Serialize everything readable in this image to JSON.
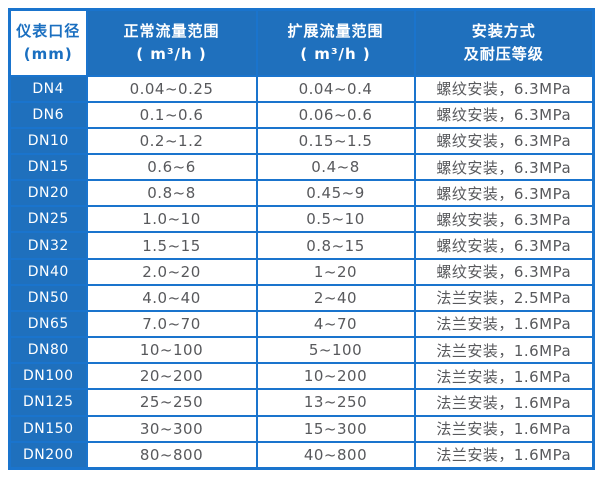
{
  "colors": {
    "page_bg": "#ffffff",
    "blue_fill": "#1f70bd",
    "border_blue": "#1a74cd",
    "header_blue_text": "#1a6fc0",
    "data_text": "#58595c"
  },
  "table": {
    "headers": [
      {
        "line1": "仪表口径",
        "line2": "(mm)"
      },
      {
        "line1": "正常流量范围",
        "line2": "( m³/h )"
      },
      {
        "line1": "扩展流量范围",
        "line2": "( m³/h )"
      },
      {
        "line1": "安装方式",
        "line2": "及耐压等级"
      }
    ],
    "rows": [
      {
        "dn": "DN4",
        "normal": "0.04~0.25",
        "extended": "0.04~0.4",
        "install": "螺纹安装，6.3MPa"
      },
      {
        "dn": "DN6",
        "normal": "0.1~0.6",
        "extended": "0.06~0.6",
        "install": "螺纹安装，6.3MPa"
      },
      {
        "dn": "DN10",
        "normal": "0.2~1.2",
        "extended": "0.15~1.5",
        "install": "螺纹安装，6.3MPa"
      },
      {
        "dn": "DN15",
        "normal": "0.6~6",
        "extended": "0.4~8",
        "install": "螺纹安装，6.3MPa"
      },
      {
        "dn": "DN20",
        "normal": "0.8~8",
        "extended": "0.45~9",
        "install": "螺纹安装，6.3MPa"
      },
      {
        "dn": "DN25",
        "normal": "1.0~10",
        "extended": "0.5~10",
        "install": "螺纹安装，6.3MPa"
      },
      {
        "dn": "DN32",
        "normal": "1.5~15",
        "extended": "0.8~15",
        "install": "螺纹安装，6.3MPa"
      },
      {
        "dn": "DN40",
        "normal": "2.0~20",
        "extended": "1~20",
        "install": "螺纹安装，6.3MPa"
      },
      {
        "dn": "DN50",
        "normal": "4.0~40",
        "extended": "2~40",
        "install": "法兰安装，2.5MPa"
      },
      {
        "dn": "DN65",
        "normal": "7.0~70",
        "extended": "4~70",
        "install": "法兰安装，1.6MPa"
      },
      {
        "dn": "DN80",
        "normal": "10~100",
        "extended": "5~100",
        "install": "法兰安装，1.6MPa"
      },
      {
        "dn": "DN100",
        "normal": "20~200",
        "extended": "10~200",
        "install": "法兰安装，1.6MPa"
      },
      {
        "dn": "DN125",
        "normal": "25~250",
        "extended": "13~250",
        "install": "法兰安装，1.6MPa"
      },
      {
        "dn": "DN150",
        "normal": "30~300",
        "extended": "15~300",
        "install": "法兰安装，1.6MPa"
      },
      {
        "dn": "DN200",
        "normal": "80~800",
        "extended": "40~800",
        "install": "法兰安装，1.6MPa"
      }
    ]
  }
}
